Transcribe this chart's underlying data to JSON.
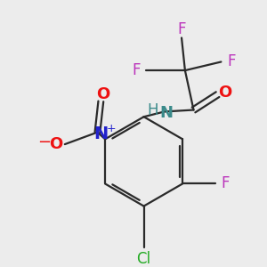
{
  "bg_color": "#ececec",
  "bond_color": "#2a2a2a",
  "bond_width": 1.6,
  "colors": {
    "N_amide": "#3a8a8a",
    "N_no2": "#2222cc",
    "O": "#ee1111",
    "F": "#bb33bb",
    "Cl": "#22aa22",
    "H": "#3a8a8a",
    "C": "#2a2a2a"
  },
  "font_size": 12
}
